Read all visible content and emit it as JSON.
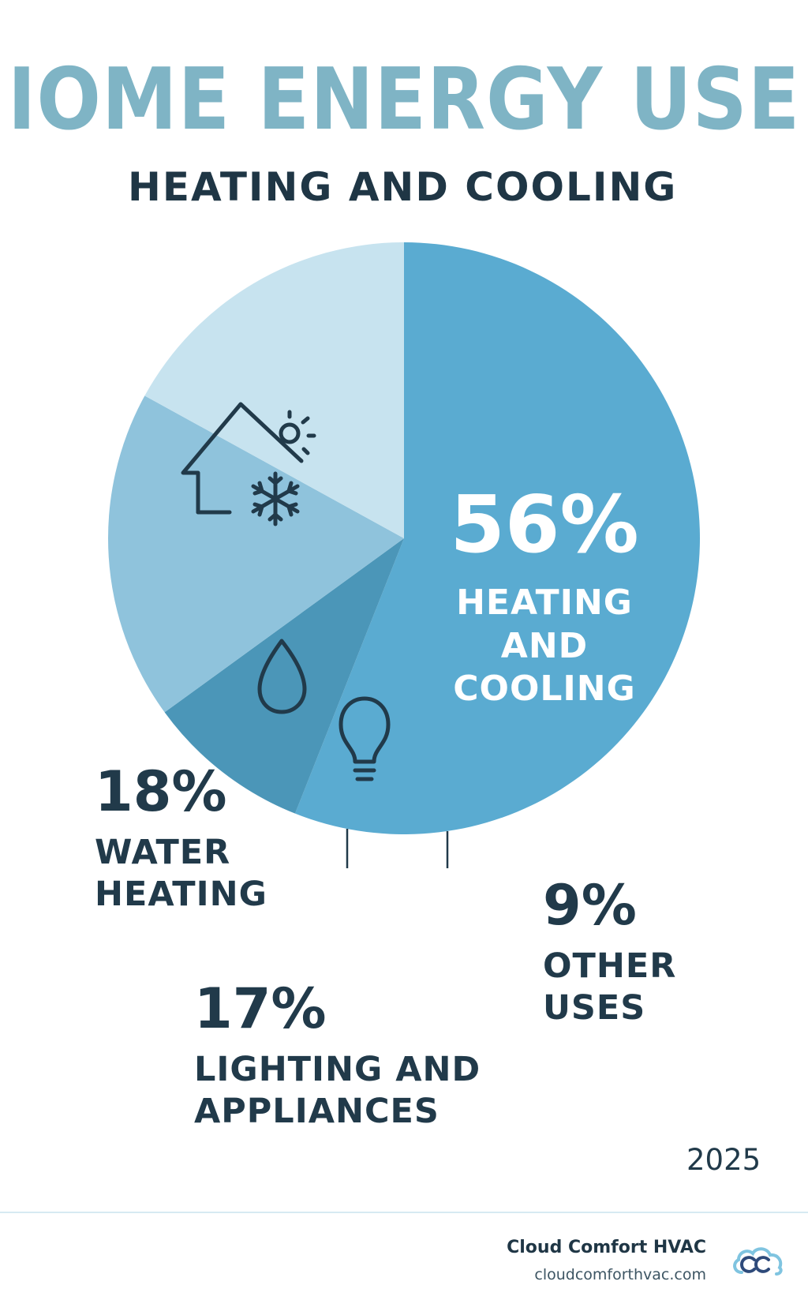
{
  "header": {
    "title": "IOME ENERGY USE",
    "subtitle": "HEATING AND COOLING"
  },
  "colors": {
    "heating_cooling": "#5aabd1",
    "other_uses": "#4b96b8",
    "water_heating": "#8fc3dc",
    "lighting_appliances": "#c7e3ef",
    "text_dark": "#213a4a",
    "title": "#7fb4c5"
  },
  "chart_data": {
    "type": "pie",
    "title": "",
    "slices": [
      {
        "label": "HEATING AND COOLING",
        "value": 56,
        "value_label": "56%",
        "color": "#5aabd1",
        "icon": ""
      },
      {
        "label": "OTHER USES",
        "value": 9,
        "value_label": "9%",
        "color": "#4b96b8",
        "icon": "lightbulb-icon"
      },
      {
        "label": "WATER HEATING",
        "value": 18,
        "value_label": "18%",
        "color": "#8fc3dc",
        "icon": "water-drop-icon"
      },
      {
        "label": "LIGHTING AND APPLIANCES",
        "value": 17,
        "value_label": "17%",
        "color": "#c7e3ef",
        "icon": "house-sun-snowflake-icon"
      }
    ],
    "start_angle": "12 o'clock",
    "direction": "clockwise"
  },
  "labels": {
    "heating_cooling": {
      "pct": "56%",
      "line1": "HEATING",
      "line2": "AND",
      "line3": "COOLING"
    },
    "water_heating": {
      "pct": "18%",
      "line1": "WATER",
      "line2": "HEATING"
    },
    "lighting": {
      "pct": "17%",
      "line1": "LIGHTING AND",
      "line2": "APPLIANCES"
    },
    "other": {
      "pct": "9%",
      "line1": "OTHER",
      "line2": "USES"
    }
  },
  "footer": {
    "year": "2025",
    "brand_name": "Cloud Comfort HVAC",
    "brand_url": "cloudcomforthvac.com"
  }
}
